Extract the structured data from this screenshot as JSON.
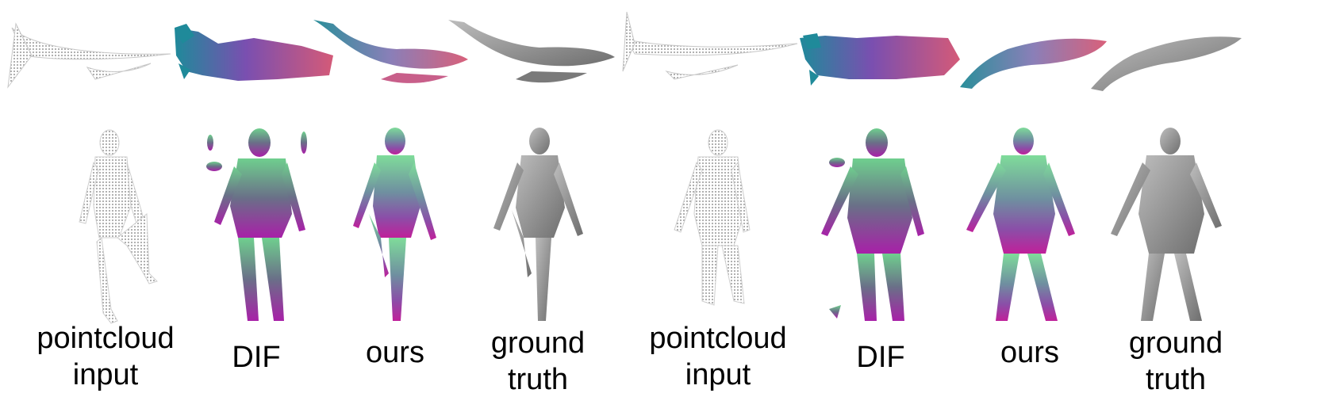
{
  "figure": {
    "left_group": {
      "captions": [
        {
          "lines": [
            "pointcloud",
            "input"
          ]
        },
        {
          "lines": [
            "DIF"
          ]
        },
        {
          "lines": [
            "ours"
          ]
        },
        {
          "lines": [
            "ground",
            "truth"
          ]
        }
      ]
    },
    "right_group": {
      "captions": [
        {
          "lines": [
            "pointcloud",
            "input"
          ]
        },
        {
          "lines": [
            "DIF"
          ]
        },
        {
          "lines": [
            "ours"
          ]
        },
        {
          "lines": [
            "ground",
            "truth"
          ]
        }
      ]
    },
    "colors": {
      "pointcloud": "#b8b8b8",
      "ground_truth": "#8c8c8c",
      "teal": "#2a8f9a",
      "green": "#6fcf8e",
      "purple": "#7a4fb0",
      "magenta": "#c0209a",
      "pink": "#d9607a"
    }
  }
}
